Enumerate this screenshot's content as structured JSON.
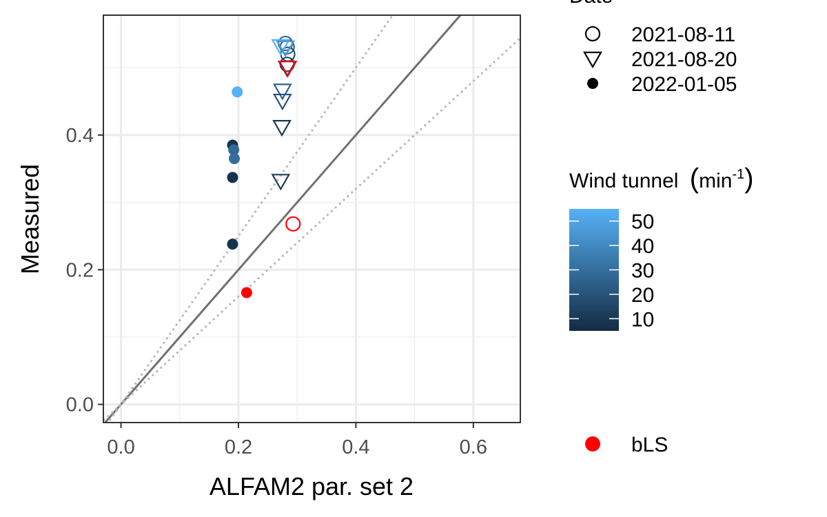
{
  "chart_data": {
    "type": "scatter",
    "xlabel": "ALFAM2 par. set 2",
    "ylabel": "Measured",
    "xlim": [
      -0.03,
      0.68
    ],
    "ylim": [
      -0.027,
      0.578
    ],
    "x_ticks": [
      0.0,
      0.2,
      0.4,
      0.6
    ],
    "y_ticks": [
      0.0,
      0.2,
      0.4
    ],
    "x_tick_labels": [
      "0.0",
      "0.2",
      "0.4",
      "0.6"
    ],
    "y_tick_labels": [
      "0.0",
      "0.2",
      "0.4"
    ],
    "x_minor_ticks": [
      0.1,
      0.3,
      0.5
    ],
    "y_minor_ticks": [
      0.1,
      0.3,
      0.5
    ],
    "grid": true,
    "reference_lines": [
      {
        "slope": 1.0,
        "style": "solid",
        "color": "#707070"
      },
      {
        "slope": 1.25,
        "style": "dotted",
        "color": "#b9b9b9"
      },
      {
        "slope": 0.8,
        "style": "dotted",
        "color": "#b9b9b9"
      }
    ],
    "shape_legend": {
      "title": "Date",
      "items": [
        {
          "label": "2021-08-11",
          "shape": "circle-open"
        },
        {
          "label": "2021-08-20",
          "shape": "triangle-down-open"
        },
        {
          "label": "2022-01-05",
          "shape": "circle-filled"
        }
      ]
    },
    "color_legend": {
      "title_text": "Wind tunnel",
      "title_unit": "min",
      "title_superscript": "-1",
      "ticks": [
        50,
        40,
        30,
        20,
        10
      ],
      "range": [
        5,
        55
      ],
      "low_color": "#132b43",
      "high_color": "#56b1f7"
    },
    "bls_legend": {
      "label": "bLS",
      "color": "#ff0000"
    },
    "points": [
      {
        "x": 0.28,
        "y": 0.536,
        "shape": "circle-open",
        "wind": 30
      },
      {
        "x": 0.283,
        "y": 0.531,
        "shape": "circle-open",
        "wind": 25
      },
      {
        "x": 0.284,
        "y": 0.52,
        "shape": "circle-open",
        "wind": 20
      },
      {
        "x": 0.283,
        "y": 0.505,
        "shape": "circle-open",
        "wind": 15
      },
      {
        "x": 0.293,
        "y": 0.268,
        "shape": "circle-open",
        "bls": true
      },
      {
        "x": 0.272,
        "y": 0.532,
        "shape": "triangle-down-open",
        "wind": 55
      },
      {
        "x": 0.28,
        "y": 0.53,
        "shape": "triangle-down-open",
        "wind": 45
      },
      {
        "x": 0.283,
        "y": 0.5,
        "shape": "triangle-down-open",
        "wind": 12
      },
      {
        "x": 0.275,
        "y": 0.466,
        "shape": "triangle-down-open",
        "wind": 25
      },
      {
        "x": 0.275,
        "y": 0.451,
        "shape": "triangle-down-open",
        "wind": 20
      },
      {
        "x": 0.274,
        "y": 0.412,
        "shape": "triangle-down-open",
        "wind": 10
      },
      {
        "x": 0.272,
        "y": 0.332,
        "shape": "triangle-down-open",
        "wind": 12
      },
      {
        "x": 0.284,
        "y": 0.5,
        "shape": "triangle-down-open",
        "bls": true
      },
      {
        "x": 0.198,
        "y": 0.464,
        "shape": "circle-filled",
        "wind": 55
      },
      {
        "x": 0.19,
        "y": 0.385,
        "shape": "circle-filled",
        "wind": 8
      },
      {
        "x": 0.192,
        "y": 0.378,
        "shape": "circle-filled",
        "wind": 28
      },
      {
        "x": 0.193,
        "y": 0.365,
        "shape": "circle-filled",
        "wind": 30
      },
      {
        "x": 0.19,
        "y": 0.337,
        "shape": "circle-filled",
        "wind": 8
      },
      {
        "x": 0.19,
        "y": 0.238,
        "shape": "circle-filled",
        "wind": 8
      },
      {
        "x": 0.214,
        "y": 0.166,
        "shape": "circle-filled",
        "bls": true
      }
    ]
  }
}
